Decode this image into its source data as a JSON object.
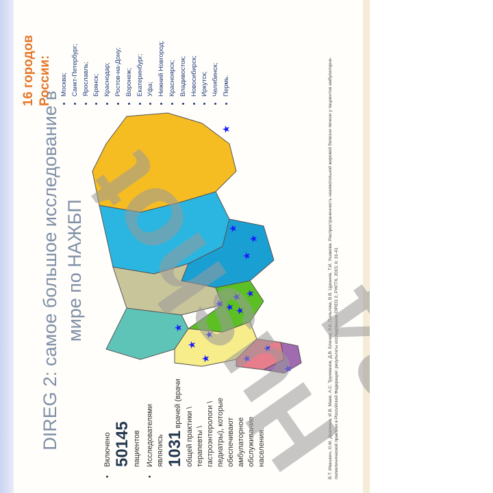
{
  "slide": {
    "title": "DIREG 2: самое большое исследование в мире по НАЖБП",
    "bullets": [
      {
        "pre": "Включено",
        "number": "50145",
        "post": "пациентов"
      },
      {
        "pre": "Исследователями являлись",
        "number": "1031",
        "post_inline": "врачей",
        "post": "(врачи общей практики \\ терапевты \\ гастроэнтерологи \\ педиатры), которые обеспечивают амбулаторное обслуживание населения."
      }
    ],
    "cities_heading": "16 городов России:",
    "cities": [
      "Москва;",
      "Санкт-Петербург;",
      "Ярославль;",
      "Брянск;",
      "Краснодар;",
      "Ростов-на-Дону;",
      "Воронеж;",
      "Екатеринбург;",
      "Уфа;",
      "Нижний Новгород;",
      "Красноярск;",
      "Владивосток;",
      "Новосибирск;",
      "Иркутск;",
      "Челябинск;",
      "Пермь."
    ],
    "citation": "В.Т. Ивашкин, О.М. Драпкина, И.В. Маев, А.С. Трухманов, Д.В. Блинов, Л.К. Пальгова, В.В. Цуканов, Т.И. Ушакова. Распространенность неалкогольной жировой болезни печени у пациентов амбулаторно-поликлинической практики в Российской Федерации: результаты исследования DIREG 2, РЖГГК, 2015; 6: 31-41",
    "watermark": "Hushot 24",
    "colors": {
      "title": "#7f8fa6",
      "accent": "#e4772a",
      "city_text": "#1f3a78",
      "star": "#1a1aff"
    }
  }
}
